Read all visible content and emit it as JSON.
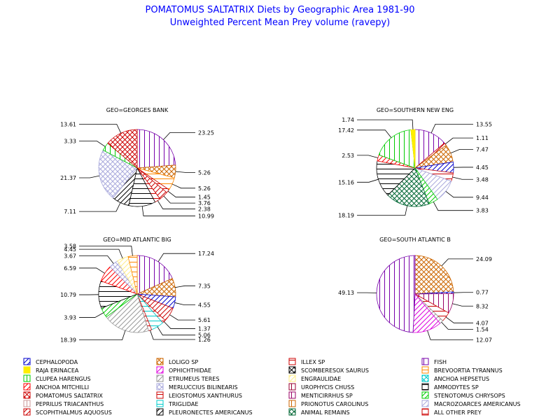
{
  "title_line1": "POMATOMUS SALTATRIX Diets by Geographic Area 1981-90",
  "title_line2": "Unweighted Percent Mean Prey volume (ravepy)",
  "legend_items": [
    {
      "label": "CEPHALOPODA",
      "color": "#0000cc",
      "pattern": "diag"
    },
    {
      "label": "LOLIGO SP",
      "color": "#cc6600",
      "pattern": "cross"
    },
    {
      "label": "ILLEX SP",
      "color": "#cc0000",
      "pattern": "hlines"
    },
    {
      "label": "FISH",
      "color": "#7700aa",
      "pattern": "vlines"
    },
    {
      "label": "RAJA ERINACEA",
      "color": "#ffee00",
      "pattern": "solid"
    },
    {
      "label": "OPHICHTHIDAE",
      "color": "#dd00dd",
      "pattern": "diag"
    },
    {
      "label": "SCOMBERESOX SAURUS",
      "color": "#000000",
      "pattern": "cross"
    },
    {
      "label": "BREVOORTIA TYRANNUS",
      "color": "#ff8800",
      "pattern": "hlines"
    },
    {
      "label": "CLUPEA HARENGUS",
      "color": "#00cc00",
      "pattern": "vlines"
    },
    {
      "label": "ETRUMEUS TERES",
      "color": "#999999",
      "pattern": "diag"
    },
    {
      "label": "ENGRAULIDAE",
      "color": "#ffee88",
      "pattern": "diag"
    },
    {
      "label": "ANCHOA HEPSETUS",
      "color": "#00cccc",
      "pattern": "cross"
    },
    {
      "label": "ANCHOA MITCHILLI",
      "color": "#ff0000",
      "pattern": "diag"
    },
    {
      "label": "MERLUCCIUS BILINEARIS",
      "color": "#aaaadd",
      "pattern": "cross"
    },
    {
      "label": "UROPHYCIS CHUSS",
      "color": "#990033",
      "pattern": "vlines"
    },
    {
      "label": "AMMODYTES SP",
      "color": "#000000",
      "pattern": "hlines"
    },
    {
      "label": "POMATOMUS SALTATRIX",
      "color": "#cc0000",
      "pattern": "cross"
    },
    {
      "label": "LEIOSTOMUS XANTHURUS",
      "color": "#cc0000",
      "pattern": "hlines"
    },
    {
      "label": "MENTICIRRHUS SP",
      "color": "#990066",
      "pattern": "vlines"
    },
    {
      "label": "STENOTOMUS CHRYSOPS",
      "color": "#00cc00",
      "pattern": "diag"
    },
    {
      "label": "PEPRILUS TRIACANTHUS",
      "color": "#cc9999",
      "pattern": "vlines"
    },
    {
      "label": "TRIGLIDAE",
      "color": "#00cccc",
      "pattern": "hlines"
    },
    {
      "label": "PRIONOTUS CAROLINUS",
      "color": "#cc6600",
      "pattern": "vlines"
    },
    {
      "label": "MACROZOARCES AMERICANUS",
      "color": "#aaaadd",
      "pattern": "diag"
    },
    {
      "label": "SCOPHTHALMUS AQUOSUS",
      "color": "#cc0000",
      "pattern": "diag"
    },
    {
      "label": "PLEURONECTES AMERICANUS",
      "color": "#000000",
      "pattern": "diag"
    },
    {
      "label": "ANIMAL REMAINS",
      "color": "#006633",
      "pattern": "cross"
    },
    {
      "label": "ALL OTHER PREY",
      "color": "#cc0000",
      "pattern": "hlines"
    }
  ],
  "chart_data": [
    {
      "type": "pie",
      "title": "GEO=GEORGES BANK",
      "slices": [
        {
          "prey": "FISH",
          "value": 23.25
        },
        {
          "prey": "LOLIGO SP",
          "value": 5.26
        },
        {
          "prey": "BREVOORTIA TYRANNUS",
          "value": 5.26
        },
        {
          "prey": "ILLEX SP",
          "value": 1.45
        },
        {
          "prey": "SCOPHTHALMUS AQUOSUS",
          "value": 3.76
        },
        {
          "prey": "ALL OTHER PREY",
          "value": 2.38
        },
        {
          "prey": "AMMODYTES SP",
          "value": 10.99
        },
        {
          "prey": "PLEURONECTES AMERICANUS",
          "value": 7.11
        },
        {
          "prey": "MERLUCCIUS BILINEARIS",
          "value": 21.37
        },
        {
          "prey": "CLUPEA HARENGUS",
          "value": 3.33
        },
        {
          "prey": "POMATOMUS SALTATRIX",
          "value": 13.61
        }
      ],
      "labels": [
        "23.25",
        "5.26",
        "5.26",
        "1.45",
        "3.76",
        "2.38",
        "10.99",
        "7.11",
        "21.37",
        "3.33",
        "13.61"
      ]
    },
    {
      "type": "pie",
      "title": "GEO=SOUTHERN NEW ENG",
      "slices": [
        {
          "prey": "FISH",
          "value": 13.55
        },
        {
          "prey": "SCOPHTHALMUS AQUOSUS",
          "value": 1.11
        },
        {
          "prey": "LOLIGO SP",
          "value": 7.47
        },
        {
          "prey": "CEPHALOPODA",
          "value": 4.45
        },
        {
          "prey": "ILLEX SP",
          "value": 3.48
        },
        {
          "prey": "MACROZOARCES AMERICANUS",
          "value": 9.44
        },
        {
          "prey": "STENOTOMUS CHRYSOPS",
          "value": 3.83
        },
        {
          "prey": "ANIMAL REMAINS",
          "value": 18.19
        },
        {
          "prey": "AMMODYTES SP",
          "value": 15.16
        },
        {
          "prey": "ANCHOA MITCHILLI",
          "value": 2.53
        },
        {
          "prey": "CLUPEA HARENGUS",
          "value": 17.42
        },
        {
          "prey": "RAJA ERINACEA",
          "value": 1.74
        }
      ],
      "labels": [
        "13.55",
        "1.11",
        "7.47",
        "4.45",
        "3.48",
        "9.44",
        "3.83",
        "18.19",
        "15.16",
        "2.53",
        "17.42",
        "1.74"
      ]
    },
    {
      "type": "pie",
      "title": "GEO=MID ATLANTIC BIG",
      "slices": [
        {
          "prey": "FISH",
          "value": 17.24
        },
        {
          "prey": "LOLIGO SP",
          "value": 7.35
        },
        {
          "prey": "CEPHALOPODA",
          "value": 4.55
        },
        {
          "prey": "SCOPHTHALMUS AQUOSUS",
          "value": 5.61
        },
        {
          "prey": "ILLEX SP",
          "value": 1.37
        },
        {
          "prey": "TRIGLIDAE",
          "value": 5.06
        },
        {
          "prey": "ALL OTHER PREY",
          "value": 1.26
        },
        {
          "prey": "ETRUMEUS TERES",
          "value": 18.39
        },
        {
          "prey": "STENOTOMUS CHRYSOPS",
          "value": 3.93
        },
        {
          "prey": "AMMODYTES SP",
          "value": 10.79
        },
        {
          "prey": "ANCHOA MITCHILLI",
          "value": 6.59
        },
        {
          "prey": "MERLUCCIUS BILINEARIS",
          "value": 3.67
        },
        {
          "prey": "ENGRAULIDAE",
          "value": 4.45
        },
        {
          "prey": "BREVOORTIA TYRANNUS",
          "value": 3.58
        }
      ],
      "labels": [
        "17.24",
        "7.35",
        "4.55",
        "5.61",
        "1.37",
        "5.06",
        "1.26",
        "18.39",
        "3.93",
        "10.79",
        "6.59",
        "3.67",
        "4.45",
        "3.58"
      ]
    },
    {
      "type": "pie",
      "title": "GEO=SOUTH ATLANTIC B",
      "slices": [
        {
          "prey": "LOLIGO SP",
          "value": 24.09
        },
        {
          "prey": "CEPHALOPODA",
          "value": 0.77
        },
        {
          "prey": "MENTICIRRHUS SP",
          "value": 8.32
        },
        {
          "prey": "ILLEX SP",
          "value": 4.07
        },
        {
          "prey": "ETRUMEUS TERES",
          "value": 1.54
        },
        {
          "prey": "OPHICHTHIDAE",
          "value": 12.07
        },
        {
          "prey": "FISH",
          "value": 49.13
        }
      ],
      "labels": [
        "24.09",
        "0.77",
        "8.32",
        "4.07",
        "1.54",
        "12.07",
        "49.13"
      ]
    }
  ]
}
